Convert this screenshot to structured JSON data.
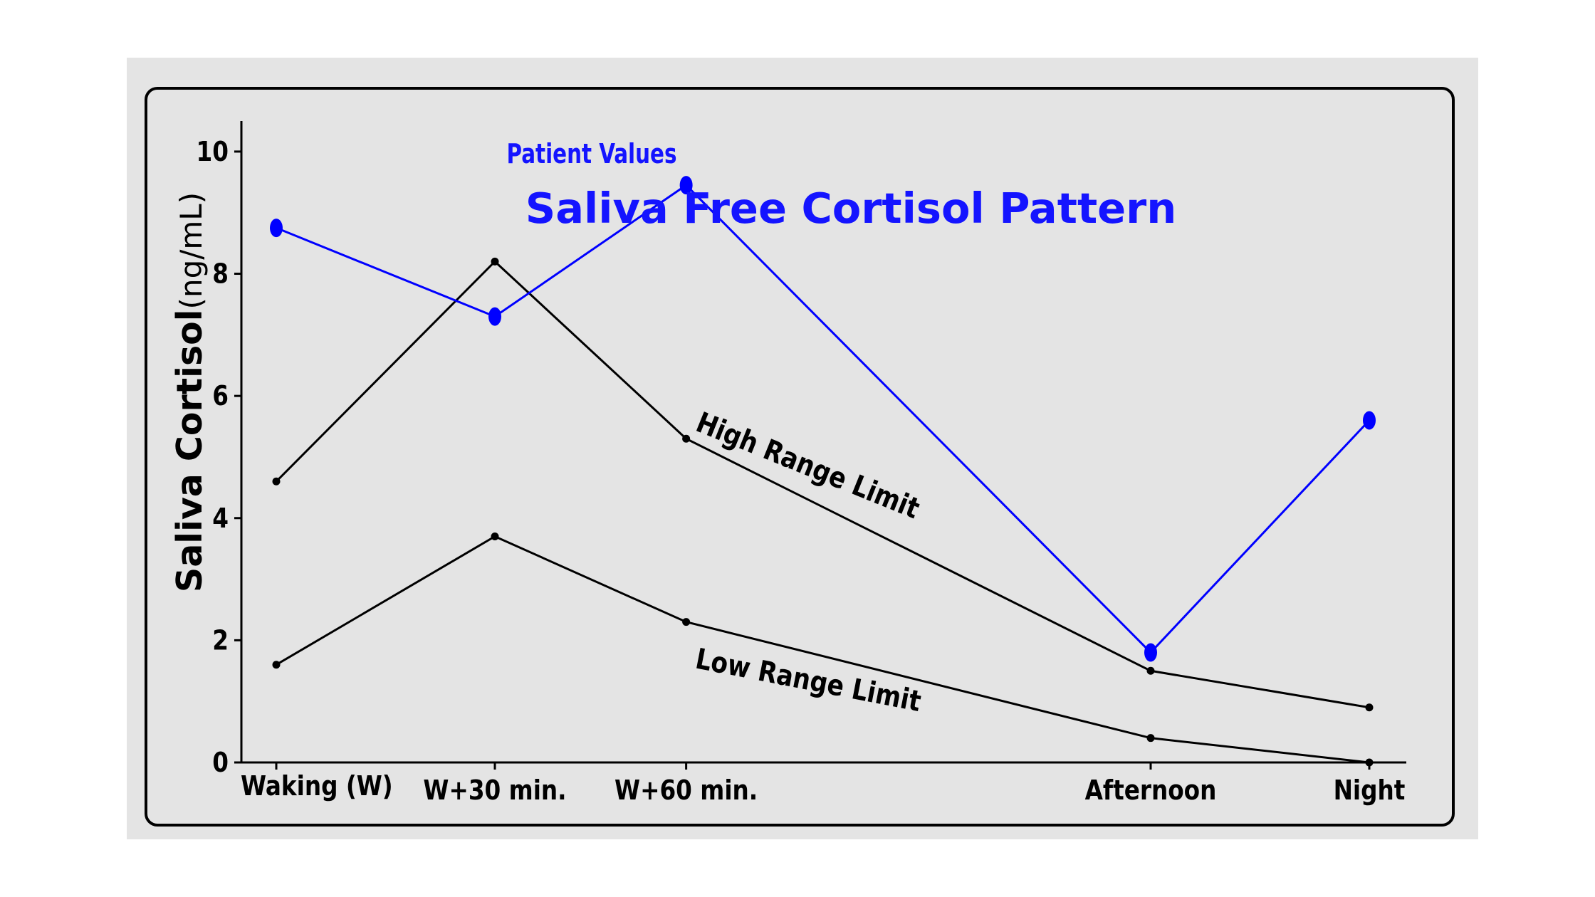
{
  "chart_data": {
    "type": "line",
    "title": "Saliva Free Cortisol Pattern",
    "ylabel_bold": "Saliva Cortisol",
    "ylabel_unit": "(ng/mL)",
    "xlabel": "",
    "categories": [
      "Waking (W)",
      "W+30 min.",
      "W+60 min.",
      "Afternoon",
      "Night"
    ],
    "x": [
      0,
      1,
      1.875,
      4,
      5
    ],
    "ylim": [
      0,
      10.5
    ],
    "yticks": [
      0,
      2,
      4,
      6,
      8,
      10
    ],
    "grid": false,
    "series": [
      {
        "name": "Patient Values",
        "color": "#0000ff",
        "values": [
          8.75,
          7.3,
          9.45,
          1.8,
          5.6
        ]
      },
      {
        "name": "High Range Limit",
        "color": "#000000",
        "values": [
          4.6,
          8.2,
          5.3,
          1.5,
          0.9
        ]
      },
      {
        "name": "Low Range Limit",
        "color": "#000000",
        "values": [
          1.6,
          3.7,
          2.3,
          0.4,
          0.0
        ]
      }
    ],
    "annotations": [
      "Patient Values",
      "High Range Limit",
      "Low Range Limit"
    ]
  },
  "colors": {
    "accent": "#0000ff",
    "panel": "#e4e4e4",
    "ink": "#000000"
  }
}
